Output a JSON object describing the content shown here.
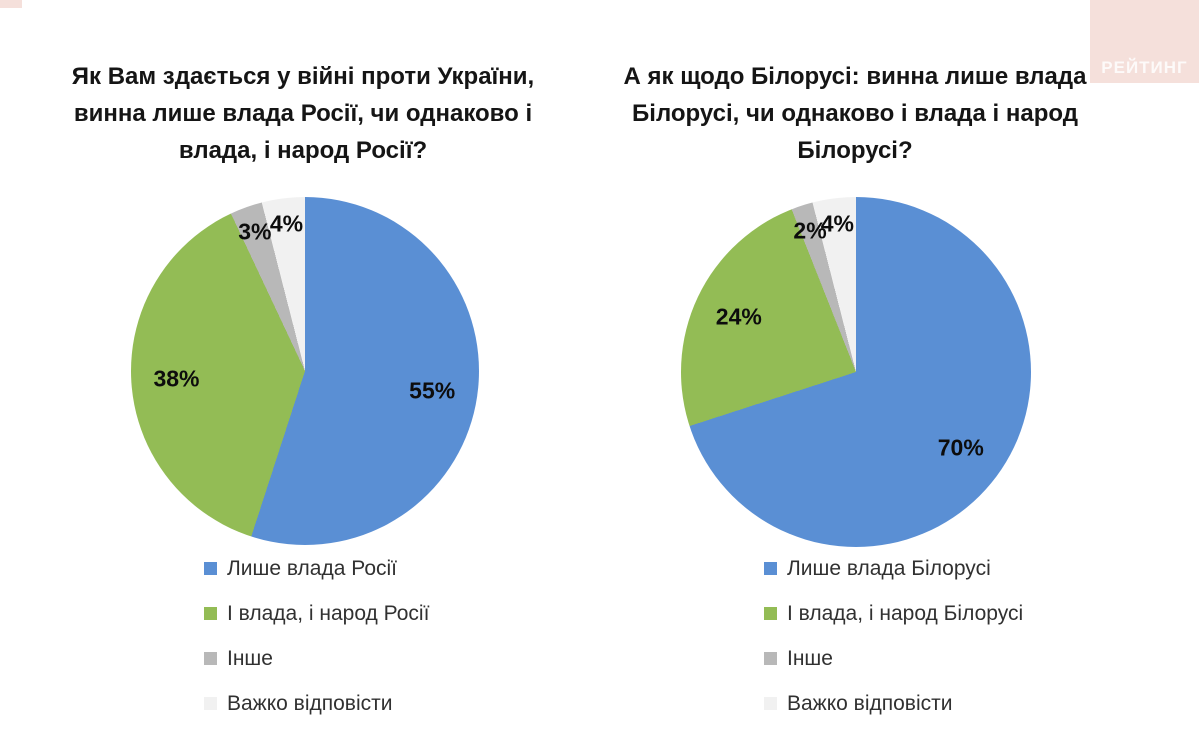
{
  "logo": {
    "text": "РЕЙТИНГ"
  },
  "colors": {
    "blue": "#5a8fd4",
    "green": "#93bc55",
    "gray": "#b8b8b8",
    "light": "#f1f1f1",
    "logo_bg": "#f5e0db"
  },
  "chart_data": [
    {
      "type": "pie",
      "title": "Як Вам здається у війні проти України, винна лише влада Росії, чи однаково і влада, і народ Росії?",
      "value_suffix": "%",
      "start_angle_deg": 0,
      "direction": "clockwise",
      "legend_position": "bottom-left",
      "slices": [
        {
          "label": "Лише влада Росії",
          "value": 55,
          "color": "#5a8fd4"
        },
        {
          "label": "І влада, і народ Росії",
          "value": 38,
          "color": "#93bc55"
        },
        {
          "label": "Інше",
          "value": 3,
          "color": "#b8b8b8"
        },
        {
          "label": "Важко відповісти",
          "value": 4,
          "color": "#f1f1f1"
        }
      ]
    },
    {
      "type": "pie",
      "title": "А як щодо Білорусі: винна лише влада Білорусі, чи однаково і влада і народ Білорусі?",
      "value_suffix": "%",
      "start_angle_deg": 0,
      "direction": "clockwise",
      "legend_position": "bottom-left",
      "slices": [
        {
          "label": "Лише влада Білорусі",
          "value": 70,
          "color": "#5a8fd4"
        },
        {
          "label": "І влада, і народ Білорусі",
          "value": 24,
          "color": "#93bc55"
        },
        {
          "label": "Інше",
          "value": 2,
          "color": "#b8b8b8"
        },
        {
          "label": "Важко відповісти",
          "value": 4,
          "color": "#f1f1f1"
        }
      ]
    }
  ]
}
